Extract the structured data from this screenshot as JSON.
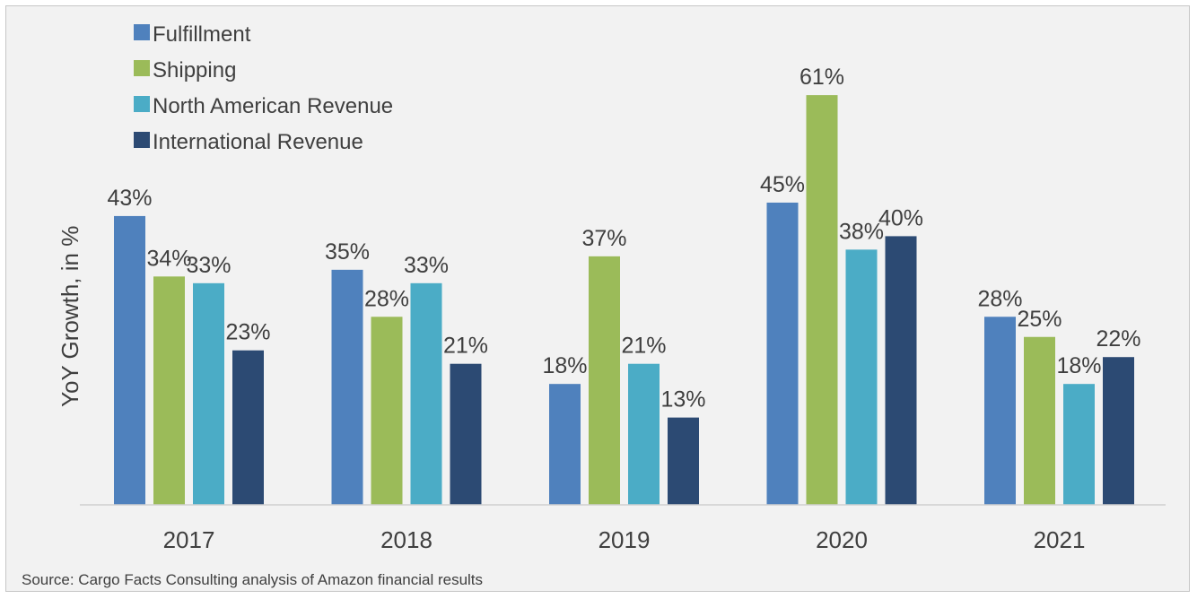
{
  "chart_data": {
    "type": "bar",
    "categories": [
      "2017",
      "2018",
      "2019",
      "2020",
      "2021"
    ],
    "series": [
      {
        "name": "Fulfillment",
        "values": [
          43,
          35,
          18,
          45,
          28
        ],
        "color": "#4f81bd"
      },
      {
        "name": "Shipping",
        "values": [
          34,
          28,
          37,
          61,
          25
        ],
        "color": "#9bbb59"
      },
      {
        "name": "North American Revenue",
        "values": [
          33,
          33,
          21,
          38,
          18
        ],
        "color": "#4bacc6"
      },
      {
        "name": "International Revenue",
        "values": [
          23,
          21,
          13,
          40,
          22
        ],
        "color": "#2c4a73"
      }
    ],
    "value_suffix": "%",
    "ylabel": "YoY Growth, in %",
    "ylim": [
      0,
      65
    ],
    "grid": false,
    "legend_position": "top-left",
    "source": "Source: Cargo Facts Consulting analysis of Amazon financial results"
  }
}
